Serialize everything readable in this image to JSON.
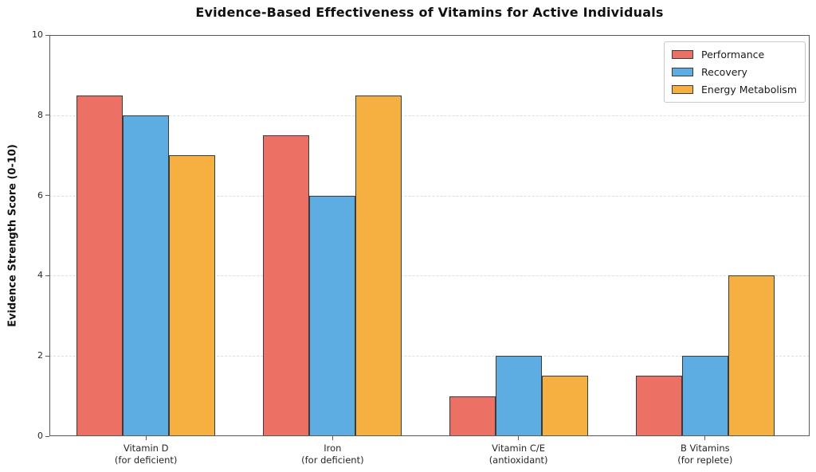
{
  "chart_data": {
    "type": "bar",
    "title": "Evidence-Based Effectiveness of Vitamins for Active Individuals",
    "xlabel": "",
    "ylabel": "Evidence Strength Score (0-10)",
    "categories": [
      "Vitamin D\n(for deficient)",
      "Iron\n(for deficient)",
      "Vitamin C/E\n(antioxidant)",
      "B Vitamins\n(for replete)"
    ],
    "series": [
      {
        "name": "Performance",
        "color": "#EC7063",
        "values": [
          8.5,
          7.5,
          1.0,
          1.5
        ]
      },
      {
        "name": "Recovery",
        "color": "#5DADE2",
        "values": [
          8.0,
          6.0,
          2.0,
          2.0
        ]
      },
      {
        "name": "Energy Metabolism",
        "color": "#F5B041",
        "values": [
          7.0,
          8.5,
          1.5,
          4.0
        ]
      }
    ],
    "ylim": [
      0,
      10
    ],
    "yticks": [
      0,
      2,
      4,
      6,
      8,
      10
    ],
    "grid": "horizontal-dashed",
    "legend_position": "upper-right",
    "bar_edge_color": "#3b3b3b",
    "grid_color": "#dedede",
    "spine_color": "#5a5a5a"
  }
}
